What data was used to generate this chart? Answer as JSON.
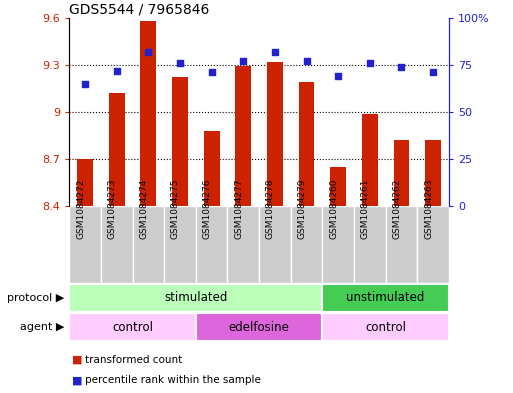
{
  "title": "GDS5544 / 7965846",
  "samples": [
    "GSM1084272",
    "GSM1084273",
    "GSM1084274",
    "GSM1084275",
    "GSM1084276",
    "GSM1084277",
    "GSM1084278",
    "GSM1084279",
    "GSM1084260",
    "GSM1084261",
    "GSM1084262",
    "GSM1084263"
  ],
  "bar_values": [
    8.7,
    9.12,
    9.58,
    9.22,
    8.88,
    9.29,
    9.32,
    9.19,
    8.65,
    8.99,
    8.82,
    8.82
  ],
  "scatter_values": [
    65,
    72,
    82,
    76,
    71,
    77,
    82,
    77,
    69,
    76,
    74,
    71
  ],
  "ylim_left": [
    8.4,
    9.6
  ],
  "ylim_right": [
    0,
    100
  ],
  "yticks_left": [
    8.4,
    8.7,
    9.0,
    9.3,
    9.6
  ],
  "ytick_labels_left": [
    "8.4",
    "8.7",
    "9",
    "9.3",
    "9.6"
  ],
  "yticks_right": [
    0,
    25,
    50,
    75,
    100
  ],
  "ytick_labels_right": [
    "0",
    "25",
    "50",
    "75",
    "100%"
  ],
  "gridlines": [
    8.7,
    9.0,
    9.3
  ],
  "bar_color": "#cc2200",
  "scatter_color": "#2222cc",
  "protocol_groups": [
    {
      "label": "stimulated",
      "start": 0,
      "end": 8,
      "color": "#bbffbb"
    },
    {
      "label": "unstimulated",
      "start": 8,
      "end": 12,
      "color": "#44cc55"
    }
  ],
  "agent_groups": [
    {
      "label": "control",
      "start": 0,
      "end": 4,
      "color": "#ffccff"
    },
    {
      "label": "edelfosine",
      "start": 4,
      "end": 8,
      "color": "#dd66dd"
    },
    {
      "label": "control",
      "start": 8,
      "end": 12,
      "color": "#ffccff"
    }
  ],
  "xtick_bg_color": "#cccccc",
  "legend_bar_label": "transformed count",
  "legend_scatter_label": "percentile rank within the sample",
  "protocol_label": "protocol",
  "agent_label": "agent",
  "left_axis_color": "#cc2200",
  "right_axis_color": "#2222cc",
  "bar_width": 0.5
}
